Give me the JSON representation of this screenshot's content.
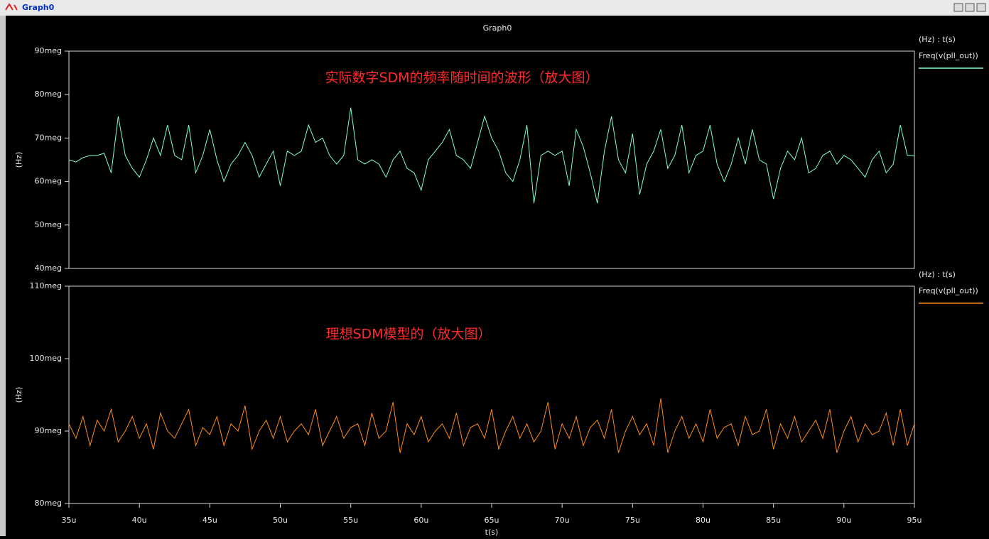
{
  "window_title": "Graph0",
  "title": "Graph0",
  "chart_data": [
    {
      "type": "line",
      "annotation": "实际数字SDM的频率随时间的波形（放大图）",
      "ylabel": "(Hz)",
      "legend_header": "(Hz) : t(s)",
      "xlim": [
        3.5e-05,
        9.5e-05
      ],
      "ylim": [
        40000000.0,
        90000000.0
      ],
      "yticks": [
        {
          "value": 40000000.0,
          "label": "40meg"
        },
        {
          "value": 50000000.0,
          "label": "50meg"
        },
        {
          "value": 60000000.0,
          "label": "60meg"
        },
        {
          "value": 70000000.0,
          "label": "70meg"
        },
        {
          "value": 80000000.0,
          "label": "80meg"
        },
        {
          "value": 90000000.0,
          "label": "90meg"
        }
      ],
      "x": [
        3.5e-05,
        3.55e-05,
        3.6e-05,
        3.65e-05,
        3.7e-05,
        3.75e-05,
        3.8e-05,
        3.85e-05,
        3.9e-05,
        3.95e-05,
        4e-05,
        4.05e-05,
        4.1e-05,
        4.15e-05,
        4.2e-05,
        4.25e-05,
        4.3e-05,
        4.35e-05,
        4.4e-05,
        4.45e-05,
        4.5e-05,
        4.55e-05,
        4.6e-05,
        4.65e-05,
        4.7e-05,
        4.75e-05,
        4.8e-05,
        4.85e-05,
        4.9e-05,
        4.95e-05,
        5e-05,
        5.05e-05,
        5.1e-05,
        5.15e-05,
        5.2e-05,
        5.25e-05,
        5.3e-05,
        5.35e-05,
        5.4e-05,
        5.45e-05,
        5.5e-05,
        5.55e-05,
        5.6e-05,
        5.65e-05,
        5.7e-05,
        5.75e-05,
        5.8e-05,
        5.85e-05,
        5.9e-05,
        5.95e-05,
        6e-05,
        6.05e-05,
        6.1e-05,
        6.15e-05,
        6.2e-05,
        6.25e-05,
        6.3e-05,
        6.35e-05,
        6.4e-05,
        6.45e-05,
        6.5e-05,
        6.55e-05,
        6.6e-05,
        6.65e-05,
        6.7e-05,
        6.75e-05,
        6.8e-05,
        6.85e-05,
        6.9e-05,
        6.95e-05,
        7e-05,
        7.05e-05,
        7.1e-05,
        7.15e-05,
        7.2e-05,
        7.25e-05,
        7.3e-05,
        7.35e-05,
        7.4e-05,
        7.45e-05,
        7.5e-05,
        7.55e-05,
        7.6e-05,
        7.65e-05,
        7.7e-05,
        7.75e-05,
        7.8e-05,
        7.85e-05,
        7.9e-05,
        7.95e-05,
        8e-05,
        8.05e-05,
        8.1e-05,
        8.15e-05,
        8.2e-05,
        8.25e-05,
        8.3e-05,
        8.35e-05,
        8.4e-05,
        8.45e-05,
        8.5e-05,
        8.55e-05,
        8.6e-05,
        8.65e-05,
        8.7e-05,
        8.75e-05,
        8.8e-05,
        8.85e-05,
        8.9e-05,
        8.95e-05,
        9e-05,
        9.05e-05,
        9.1e-05,
        9.15e-05,
        9.2e-05,
        9.25e-05,
        9.3e-05,
        9.35e-05,
        9.4e-05,
        9.45e-05,
        9.5e-05
      ],
      "series": [
        {
          "name": "Freq(v(pll_out))",
          "color": "#7fffd0",
          "values": [
            65000000.0,
            64500000.0,
            65500000.0,
            66000000.0,
            66000000.0,
            66500000.0,
            62000000.0,
            75000000.0,
            66000000.0,
            63000000.0,
            61000000.0,
            65000000.0,
            70000000.0,
            66000000.0,
            73000000.0,
            66000000.0,
            65000000.0,
            73000000.0,
            62000000.0,
            66000000.0,
            72000000.0,
            65000000.0,
            60000000.0,
            64000000.0,
            66000000.0,
            69000000.0,
            66000000.0,
            61000000.0,
            64000000.0,
            67000000.0,
            59000000.0,
            67000000.0,
            66000000.0,
            67000000.0,
            73000000.0,
            69000000.0,
            70000000.0,
            66000000.0,
            64000000.0,
            66000000.0,
            77000000.0,
            65000000.0,
            64000000.0,
            65000000.0,
            64000000.0,
            61000000.0,
            65000000.0,
            67000000.0,
            63000000.0,
            62000000.0,
            58000000.0,
            65000000.0,
            67000000.0,
            69000000.0,
            72000000.0,
            66000000.0,
            65000000.0,
            63000000.0,
            69000000.0,
            75000000.0,
            70000000.0,
            67000000.0,
            62000000.0,
            60000000.0,
            65000000.0,
            73000000.0,
            55000000.0,
            66000000.0,
            67000000.0,
            66000000.0,
            67000000.0,
            59000000.0,
            72000000.0,
            68000000.0,
            62000000.0,
            55000000.0,
            67000000.0,
            75000000.0,
            65000000.0,
            62000000.0,
            71000000.0,
            57000000.0,
            64000000.0,
            67000000.0,
            72000000.0,
            63000000.0,
            66000000.0,
            73000000.0,
            62000000.0,
            66000000.0,
            67000000.0,
            73000000.0,
            64000000.0,
            60000000.0,
            64000000.0,
            70000000.0,
            64000000.0,
            72000000.0,
            65000000.0,
            64000000.0,
            56000000.0,
            63000000.0,
            67000000.0,
            65000000.0,
            70000000.0,
            62000000.0,
            63000000.0,
            66000000.0,
            67000000.0,
            64000000.0,
            66000000.0,
            65000000.0,
            63000000.0,
            61000000.0,
            65000000.0,
            67000000.0,
            62000000.0,
            64000000.0,
            73000000.0,
            66000000.0,
            66000000.0
          ]
        }
      ]
    },
    {
      "type": "line",
      "annotation": "理想SDM模型的（放大图）",
      "ylabel": "(Hz)",
      "legend_header": "(Hz) : t(s)",
      "xlabel": "t(s)",
      "xlim": [
        3.5e-05,
        9.5e-05
      ],
      "ylim": [
        80000000.0,
        110000000.0
      ],
      "xticks": [
        {
          "value": 3.5e-05,
          "label": "35u"
        },
        {
          "value": 4e-05,
          "label": "40u"
        },
        {
          "value": 4.5e-05,
          "label": "45u"
        },
        {
          "value": 5e-05,
          "label": "50u"
        },
        {
          "value": 5.5e-05,
          "label": "55u"
        },
        {
          "value": 6e-05,
          "label": "60u"
        },
        {
          "value": 6.5e-05,
          "label": "65u"
        },
        {
          "value": 7e-05,
          "label": "70u"
        },
        {
          "value": 7.5e-05,
          "label": "75u"
        },
        {
          "value": 8e-05,
          "label": "80u"
        },
        {
          "value": 8.5e-05,
          "label": "85u"
        },
        {
          "value": 9e-05,
          "label": "90u"
        },
        {
          "value": 9.5e-05,
          "label": "95u"
        }
      ],
      "yticks": [
        {
          "value": 80000000.0,
          "label": "80meg"
        },
        {
          "value": 90000000.0,
          "label": "90meg"
        },
        {
          "value": 100000000.0,
          "label": "100meg"
        },
        {
          "value": 110000000.0,
          "label": "110meg"
        }
      ],
      "x": [
        3.5e-05,
        3.55e-05,
        3.6e-05,
        3.65e-05,
        3.7e-05,
        3.75e-05,
        3.8e-05,
        3.85e-05,
        3.9e-05,
        3.95e-05,
        4e-05,
        4.05e-05,
        4.1e-05,
        4.15e-05,
        4.2e-05,
        4.25e-05,
        4.3e-05,
        4.35e-05,
        4.4e-05,
        4.45e-05,
        4.5e-05,
        4.55e-05,
        4.6e-05,
        4.65e-05,
        4.7e-05,
        4.75e-05,
        4.8e-05,
        4.85e-05,
        4.9e-05,
        4.95e-05,
        5e-05,
        5.05e-05,
        5.1e-05,
        5.15e-05,
        5.2e-05,
        5.25e-05,
        5.3e-05,
        5.35e-05,
        5.4e-05,
        5.45e-05,
        5.5e-05,
        5.55e-05,
        5.6e-05,
        5.65e-05,
        5.7e-05,
        5.75e-05,
        5.8e-05,
        5.85e-05,
        5.9e-05,
        5.95e-05,
        6e-05,
        6.05e-05,
        6.1e-05,
        6.15e-05,
        6.2e-05,
        6.25e-05,
        6.3e-05,
        6.35e-05,
        6.4e-05,
        6.45e-05,
        6.5e-05,
        6.55e-05,
        6.6e-05,
        6.65e-05,
        6.7e-05,
        6.75e-05,
        6.8e-05,
        6.85e-05,
        6.9e-05,
        6.95e-05,
        7e-05,
        7.05e-05,
        7.1e-05,
        7.15e-05,
        7.2e-05,
        7.25e-05,
        7.3e-05,
        7.35e-05,
        7.4e-05,
        7.45e-05,
        7.5e-05,
        7.55e-05,
        7.6e-05,
        7.65e-05,
        7.7e-05,
        7.75e-05,
        7.8e-05,
        7.85e-05,
        7.9e-05,
        7.95e-05,
        8e-05,
        8.05e-05,
        8.1e-05,
        8.15e-05,
        8.2e-05,
        8.25e-05,
        8.3e-05,
        8.35e-05,
        8.4e-05,
        8.45e-05,
        8.5e-05,
        8.55e-05,
        8.6e-05,
        8.65e-05,
        8.7e-05,
        8.75e-05,
        8.8e-05,
        8.85e-05,
        8.9e-05,
        8.95e-05,
        9e-05,
        9.05e-05,
        9.1e-05,
        9.15e-05,
        9.2e-05,
        9.25e-05,
        9.3e-05,
        9.35e-05,
        9.4e-05,
        9.45e-05,
        9.5e-05
      ],
      "series": [
        {
          "name": "Freq(v(pll_out))",
          "color": "#ff8c1a",
          "values": [
            91000000.0,
            89000000.0,
            92000000.0,
            88000000.0,
            91500000.0,
            90000000.0,
            93000000.0,
            88500000.0,
            90000000.0,
            92000000.0,
            89000000.0,
            91000000.0,
            87500000.0,
            92500000.0,
            90000000.0,
            89000000.0,
            91000000.0,
            93000000.0,
            88000000.0,
            90500000.0,
            89500000.0,
            92000000.0,
            88000000.0,
            91000000.0,
            90000000.0,
            93500000.0,
            87500000.0,
            90000000.0,
            91500000.0,
            89000000.0,
            92000000.0,
            88500000.0,
            90000000.0,
            91000000.0,
            89500000.0,
            93000000.0,
            88000000.0,
            90000000.0,
            92000000.0,
            89000000.0,
            90500000.0,
            91000000.0,
            88000000.0,
            92500000.0,
            89000000.0,
            90000000.0,
            94000000.0,
            87000000.0,
            91000000.0,
            89500000.0,
            92000000.0,
            88500000.0,
            90000000.0,
            91000000.0,
            89000000.0,
            92500000.0,
            88000000.0,
            90500000.0,
            91000000.0,
            89000000.0,
            93000000.0,
            87500000.0,
            90000000.0,
            92000000.0,
            89000000.0,
            91000000.0,
            88500000.0,
            90000000.0,
            94000000.0,
            87500000.0,
            91000000.0,
            89000000.0,
            92000000.0,
            88000000.0,
            90500000.0,
            91500000.0,
            89000000.0,
            93000000.0,
            87000000.0,
            90000000.0,
            92000000.0,
            89500000.0,
            91000000.0,
            88000000.0,
            94500000.0,
            87000000.0,
            90000000.0,
            92000000.0,
            89000000.0,
            91000000.0,
            88500000.0,
            93000000.0,
            89000000.0,
            90500000.0,
            91000000.0,
            88000000.0,
            92000000.0,
            89500000.0,
            90000000.0,
            93000000.0,
            87500000.0,
            91000000.0,
            89000000.0,
            92000000.0,
            88500000.0,
            90000000.0,
            91500000.0,
            89000000.0,
            93000000.0,
            87000000.0,
            90000000.0,
            92000000.0,
            88500000.0,
            91000000.0,
            89500000.0,
            90000000.0,
            92500000.0,
            88000000.0,
            93000000.0,
            88000000.0,
            91000000.0
          ]
        }
      ]
    }
  ]
}
